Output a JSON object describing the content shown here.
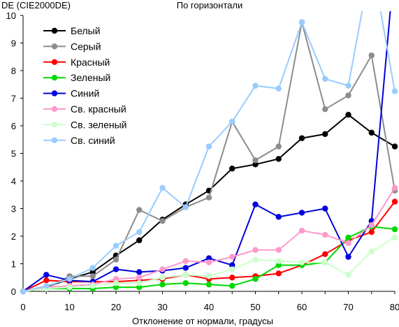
{
  "chart_data": {
    "type": "line",
    "title": "По горизонтали",
    "xlabel": "Отклонение от нормали, градусы",
    "ylabel": "DE (CIE2000DE)",
    "xlim": [
      0,
      80
    ],
    "ylim": [
      0,
      10
    ],
    "xticks": [
      0,
      10,
      20,
      30,
      40,
      50,
      60,
      70,
      80
    ],
    "yticks": [
      0,
      1,
      2,
      3,
      4,
      5,
      6,
      7,
      8,
      9,
      10
    ],
    "grid": false,
    "legend_position": "top-left",
    "x": [
      0,
      5,
      10,
      15,
      20,
      25,
      30,
      35,
      40,
      45,
      50,
      55,
      60,
      65,
      70,
      75,
      80
    ],
    "series": [
      {
        "name": "Белый",
        "color": "#000000",
        "values": [
          0,
          0.15,
          0.45,
          0.7,
          1.3,
          1.85,
          2.6,
          3.15,
          3.65,
          4.45,
          4.6,
          4.8,
          5.55,
          5.7,
          6.4,
          5.75,
          5.25
        ]
      },
      {
        "name": "Серый",
        "color": "#8c8c8c",
        "values": [
          0,
          0.1,
          0.55,
          0.55,
          1.15,
          2.95,
          2.55,
          3.05,
          3.4,
          6.15,
          4.75,
          5.25,
          9.75,
          6.6,
          7.1,
          8.55,
          3.65
        ]
      },
      {
        "name": "Красный",
        "color": "#ff0000",
        "values": [
          0,
          0.4,
          0.35,
          0.35,
          0.35,
          0.4,
          0.45,
          0.6,
          0.45,
          0.5,
          0.55,
          0.65,
          0.95,
          1.35,
          1.85,
          2.15,
          3.25
        ]
      },
      {
        "name": "Зеленый",
        "color": "#00d800",
        "values": [
          0,
          0.1,
          0.1,
          0.1,
          0.15,
          0.15,
          0.25,
          0.3,
          0.25,
          0.2,
          0.45,
          0.95,
          0.95,
          1.05,
          1.95,
          2.35,
          2.25
        ]
      },
      {
        "name": "Синий",
        "color": "#0000dd",
        "values": [
          0,
          0.6,
          0.4,
          0.35,
          0.8,
          0.7,
          0.75,
          0.85,
          1.2,
          0.95,
          3.15,
          2.7,
          2.85,
          3.0,
          1.25,
          2.55,
          12
        ]
      },
      {
        "name": "Св. красный",
        "color": "#ff99cc",
        "values": [
          0,
          0.15,
          0.2,
          0.25,
          0.45,
          0.5,
          0.8,
          1.1,
          1.05,
          1.25,
          1.5,
          1.5,
          2.2,
          2.05,
          1.75,
          2.4,
          3.75
        ]
      },
      {
        "name": "Св. зеленый",
        "color": "#ccffcc",
        "values": [
          0,
          0.1,
          0.15,
          0.2,
          0.3,
          0.3,
          0.5,
          0.6,
          0.55,
          0.8,
          1.15,
          1.1,
          1.05,
          1.05,
          0.6,
          1.45,
          1.95
        ]
      },
      {
        "name": "Св. синий",
        "color": "#99ccff",
        "values": [
          0,
          0.2,
          0.45,
          0.85,
          1.65,
          2.15,
          3.75,
          3.05,
          5.25,
          6.15,
          7.45,
          7.35,
          9.75,
          7.7,
          7.45,
          12,
          7.25
        ]
      }
    ]
  }
}
